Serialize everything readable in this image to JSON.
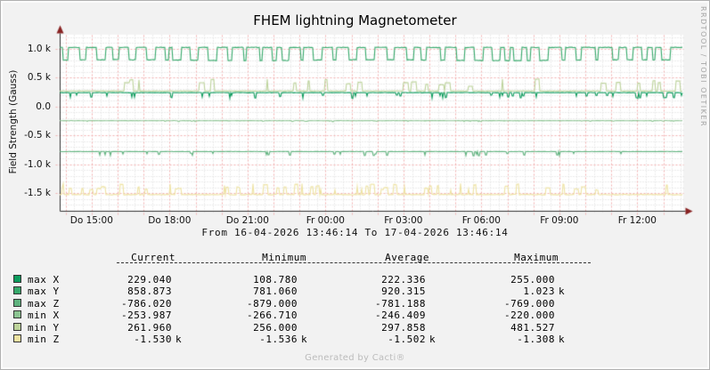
{
  "title": "FHEM lightning Magnetometer",
  "y_axis_label": "Field Strength (Gauss)",
  "time_range": "From 16-04-2026 13:46:14 To 17-04-2026 13:46:14",
  "watermark": "RRDTOOL / TOBI OETIKER",
  "footer": "Generated by Cacti®",
  "chart_data": {
    "type": "line",
    "title": "FHEM lightning Magnetometer",
    "ylabel": "Field Strength (Gauss)",
    "ylim": [
      -1807,
      1238
    ],
    "x_range_hours": 24,
    "x_start": "16-04-2026 13:46:14",
    "x_end": "17-04-2026 13:46:14",
    "x_tick_labels": [
      "Do 15:00",
      "Do 18:00",
      "Do 21:00",
      "Fr 00:00",
      "Fr 03:00",
      "Fr 06:00",
      "Fr 09:00",
      "Fr 12:00"
    ],
    "x_first_label_hour_offset": 1.2294,
    "x_label_interval_hours": 3,
    "x_major_grid_hours": 1,
    "x_minor_grid_minutes": 20,
    "y_ticks": [
      {
        "label": "1.0 k",
        "value": 1000
      },
      {
        "label": "0.5 k",
        "value": 500
      },
      {
        "label": "0.0",
        "value": 0
      },
      {
        "label": "-0.5 k",
        "value": -500
      },
      {
        "label": "-1.0 k",
        "value": -1000
      },
      {
        "label": "-1.5 k",
        "value": -1500
      }
    ],
    "y_major_step": 500,
    "y_minor_step": 100,
    "grid": {
      "plot_bg": "#ffffff",
      "major_color": "#f2b1b1",
      "minor_color": "#dadada",
      "axis_color": "#333333",
      "arrow_color": "#882222"
    },
    "series": [
      {
        "name": "max X",
        "color": "#0d9c5d",
        "stats": {
          "current": 229.04,
          "minimum": 108.78,
          "average": 222.336,
          "maximum": 255.0
        },
        "pattern": {
          "kind": "dips",
          "base": 236,
          "jitter": 3,
          "rate": 0.05,
          "extreme": 130,
          "max_dur": 2
        },
        "seed": 22
      },
      {
        "name": "max Y",
        "color": "#36a96b",
        "stats": {
          "current": 858.873,
          "minimum": 781.06,
          "average": 920.315,
          "maximum": 1023.0
        },
        "pattern": {
          "kind": "square",
          "hi": 1018,
          "lo": 798,
          "jitter": 5,
          "hi_dur": [
            4,
            17
          ],
          "lo_dur": [
            3,
            11
          ]
        },
        "seed": 7
      },
      {
        "name": "max Z",
        "color": "#5fb27e",
        "stats": {
          "current": -786.02,
          "minimum": -879.0,
          "average": -781.188,
          "maximum": -769.0
        },
        "pattern": {
          "kind": "dips",
          "base": -783,
          "jitter": 2.5,
          "rate": 0.05,
          "extreme": -856,
          "max_dur": 2
        },
        "seed": 55
      },
      {
        "name": "min X",
        "color": "#8cc492",
        "stats": {
          "current": -253.987,
          "minimum": -266.71,
          "average": -246.409,
          "maximum": -220.0
        },
        "pattern": {
          "kind": "dips",
          "base": -249,
          "jitter": 2.5,
          "rate": 0.04,
          "extreme": -266,
          "max_dur": 2
        },
        "seed": 44
      },
      {
        "name": "min Y",
        "color": "#bdd39b",
        "stats": {
          "current": 261.96,
          "minimum": 256.0,
          "average": 297.858,
          "maximum": 481.527
        },
        "pattern": {
          "kind": "spikes",
          "base": 264,
          "jitter": 3.5,
          "rate": 0.04,
          "extreme": 470,
          "max_dur": 6
        },
        "seed": 33
      },
      {
        "name": "min Z",
        "color": "#eee3a2",
        "stats": {
          "current": -1530.0,
          "minimum": -1536.0,
          "average": -1502.0,
          "maximum": -1308.0
        },
        "pattern": {
          "kind": "spikes",
          "base": -1528,
          "jitter": 6,
          "rate": 0.06,
          "extreme": -1335,
          "max_dur": 5
        },
        "seed": 66
      }
    ]
  },
  "legend": {
    "headers": [
      "Current",
      "Minimum",
      "Average",
      "Maximum"
    ],
    "rows": [
      {
        "label": "max X",
        "color": "#0d9c5d",
        "values": [
          "229.040",
          "108.780",
          "222.336",
          "255.000"
        ],
        "units": [
          "",
          "",
          "",
          ""
        ]
      },
      {
        "label": "max Y",
        "color": "#36a96b",
        "values": [
          "858.873",
          "781.060",
          "920.315",
          "1.023"
        ],
        "units": [
          "",
          "",
          "",
          "k"
        ]
      },
      {
        "label": "max Z",
        "color": "#5fb27e",
        "values": [
          "-786.020",
          "-879.000",
          "-781.188",
          "-769.000"
        ],
        "units": [
          "",
          "",
          "",
          ""
        ]
      },
      {
        "label": "min X",
        "color": "#8cc492",
        "values": [
          "-253.987",
          "-266.710",
          "-246.409",
          "-220.000"
        ],
        "units": [
          "",
          "",
          "",
          ""
        ]
      },
      {
        "label": "min Y",
        "color": "#bdd39b",
        "values": [
          "261.960",
          "256.000",
          "297.858",
          "481.527"
        ],
        "units": [
          "",
          "",
          "",
          ""
        ]
      },
      {
        "label": "min Z",
        "color": "#eee3a2",
        "values": [
          "-1.530",
          "-1.536",
          "-1.502",
          "-1.308"
        ],
        "units": [
          "k",
          "k",
          "k",
          "k"
        ]
      }
    ]
  }
}
